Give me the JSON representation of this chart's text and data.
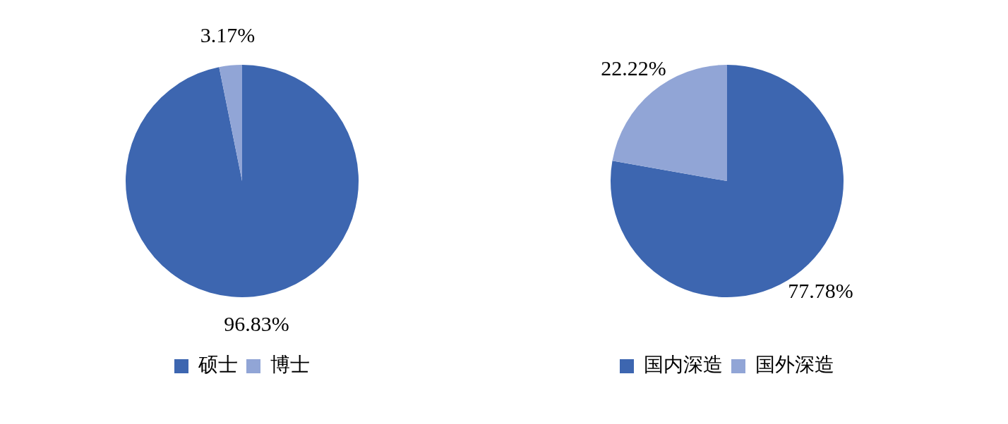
{
  "chart_data": [
    {
      "type": "pie",
      "categories": [
        "硕士",
        "博士"
      ],
      "values": [
        96.83,
        3.17
      ],
      "colors": [
        "#3d66b0",
        "#91a5d6"
      ],
      "value_labels": [
        "96.83%",
        "3.17%"
      ],
      "legend": "bottom"
    },
    {
      "type": "pie",
      "categories": [
        "国内深造",
        "国外深造"
      ],
      "values": [
        77.78,
        22.22
      ],
      "colors": [
        "#3d66b0",
        "#91a5d6"
      ],
      "value_labels": [
        "77.78%",
        "22.22%"
      ],
      "legend": "bottom"
    }
  ]
}
